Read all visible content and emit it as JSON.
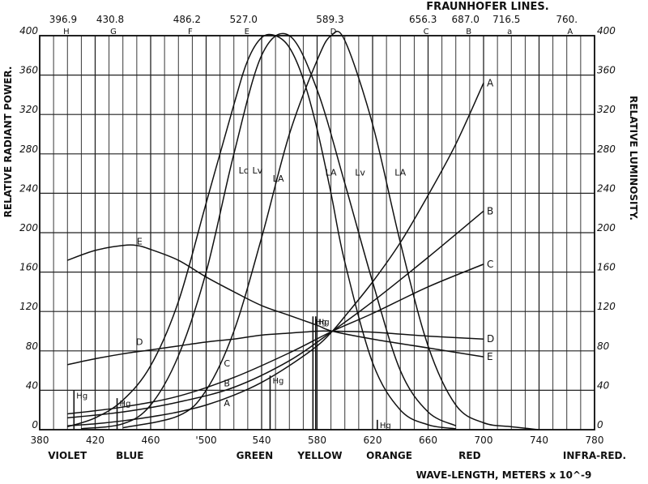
{
  "chart_data": {
    "type": "line",
    "xlabel": "WAVE-LENGTH, METERS x 10^-9",
    "ylabel_left": "RELATIVE RADIANT POWER.",
    "ylabel_right": "RELATIVE LUMINOSITY.",
    "top_title": "FRAUNHOFER LINES.",
    "xlim": [
      380,
      780
    ],
    "ylim": [
      0,
      400
    ],
    "x_ticks": [
      380,
      420,
      460,
      500,
      540,
      580,
      620,
      660,
      700,
      740,
      780
    ],
    "x_tick_labels": [
      "380",
      "420",
      "460",
      "'500",
      "540",
      "580",
      "620",
      "660",
      "700",
      "740",
      "780"
    ],
    "y_ticks": [
      0,
      40,
      80,
      120,
      160,
      200,
      240,
      280,
      320,
      360,
      400
    ],
    "grid": true,
    "fraunhofer_lines": [
      {
        "letter": "H",
        "wavelength": 396.9,
        "value_label": "396.9"
      },
      {
        "letter": "G",
        "wavelength": 430.8,
        "value_label": "430.8"
      },
      {
        "letter": "F",
        "wavelength": 486.2,
        "value_label": "486.2"
      },
      {
        "letter": "E",
        "wavelength": 527.0,
        "value_label": "527.0"
      },
      {
        "letter": "D",
        "wavelength": 589.3,
        "value_label": "589.3"
      },
      {
        "letter": "C",
        "wavelength": 656.3,
        "value_label": "656.3"
      },
      {
        "letter": "B",
        "wavelength": 687.0,
        "value_label": "687.0"
      },
      {
        "letter": "a",
        "wavelength": 716.5,
        "value_label": "716.5"
      },
      {
        "letter": "A",
        "wavelength": 760.0,
        "value_label": "760."
      }
    ],
    "color_bands": [
      {
        "name": "VIOLET",
        "x": 400
      },
      {
        "name": "BLUE",
        "x": 445
      },
      {
        "name": "GREEN",
        "x": 535
      },
      {
        "name": "YELLOW",
        "x": 582
      },
      {
        "name": "ORANGE",
        "x": 632
      },
      {
        "name": "RED",
        "x": 690
      },
      {
        "name": "INFRA-RED.",
        "x": 780
      }
    ],
    "series": [
      {
        "name": "A",
        "x": [
          400,
          420,
          440,
          460,
          480,
          500,
          520,
          540,
          560,
          580,
          591,
          600,
          620,
          640,
          660,
          680,
          700
        ],
        "y": [
          4,
          6,
          9,
          13,
          18,
          25,
          35,
          48,
          65,
          85,
          100,
          115,
          150,
          190,
          238,
          290,
          352
        ]
      },
      {
        "name": "B",
        "x": [
          400,
          440,
          480,
          520,
          560,
          591,
          620,
          660,
          700
        ],
        "y": [
          12,
          18,
          28,
          43,
          70,
          100,
          130,
          175,
          222
        ]
      },
      {
        "name": "C",
        "x": [
          400,
          440,
          480,
          520,
          560,
          591,
          620,
          660,
          700
        ],
        "y": [
          16,
          23,
          34,
          53,
          78,
          100,
          118,
          145,
          168
        ]
      },
      {
        "name": "D",
        "x": [
          400,
          420,
          440,
          460,
          480,
          500,
          520,
          540,
          560,
          580,
          591,
          620,
          660,
          700
        ],
        "y": [
          66,
          72,
          77,
          81,
          85,
          89,
          92,
          96,
          98,
          100,
          100,
          99,
          95,
          92
        ]
      },
      {
        "name": "E",
        "x": [
          400,
          420,
          440,
          450,
          460,
          480,
          500,
          520,
          540,
          560,
          580,
          591,
          620,
          660,
          700
        ],
        "y": [
          172,
          182,
          187,
          187,
          183,
          172,
          155,
          140,
          126,
          116,
          106,
          100,
          92,
          83,
          74
        ]
      },
      {
        "name": "Lc",
        "x": [
          400,
          420,
          440,
          460,
          480,
          500,
          520,
          530,
          540,
          550,
          560,
          570,
          580,
          590,
          600,
          620,
          640,
          660,
          680
        ],
        "y": [
          3,
          12,
          30,
          65,
          130,
          230,
          330,
          375,
          398,
          400,
          388,
          356,
          305,
          240,
          170,
          68,
          20,
          5,
          1
        ]
      },
      {
        "name": "Lv",
        "x": [
          410,
          440,
          460,
          480,
          500,
          520,
          540,
          560,
          580,
          600,
          620,
          640,
          660,
          680
        ],
        "y": [
          1,
          6,
          25,
          75,
          160,
          280,
          380,
          400,
          345,
          250,
          150,
          60,
          18,
          4
        ]
      },
      {
        "name": "LA",
        "x": [
          440,
          480,
          500,
          520,
          540,
          560,
          580,
          590,
          600,
          620,
          640,
          660,
          680,
          700,
          720,
          740
        ],
        "y": [
          2,
          14,
          40,
          100,
          195,
          300,
          375,
          400,
          395,
          310,
          190,
          85,
          25,
          7,
          3,
          0
        ]
      }
    ],
    "annotations": [
      {
        "text": "Lc",
        "x": 527,
        "y": 260
      },
      {
        "text": "Lv",
        "x": 537,
        "y": 260
      },
      {
        "text": "LA",
        "x": 552,
        "y": 252
      },
      {
        "text": "LA",
        "x": 590,
        "y": 258
      },
      {
        "text": "Lv",
        "x": 611,
        "y": 258
      },
      {
        "text": "LA",
        "x": 640,
        "y": 258
      },
      {
        "text": "E",
        "x": 452,
        "y": 188
      },
      {
        "text": "D",
        "x": 452,
        "y": 86
      },
      {
        "text": "C",
        "x": 515,
        "y": 64
      },
      {
        "text": "B",
        "x": 515,
        "y": 44
      },
      {
        "text": "A",
        "x": 515,
        "y": 24
      }
    ],
    "hg_lines": [
      {
        "label": "Hg",
        "x": 404.7
      },
      {
        "label": "Hg",
        "x": 435.8
      },
      {
        "label": "Hg",
        "x": 546.1
      },
      {
        "label": "Hg",
        "x": 577
      },
      {
        "label": "Hg",
        "x": 579
      },
      {
        "label": "Hg",
        "x": 623.4
      }
    ]
  }
}
